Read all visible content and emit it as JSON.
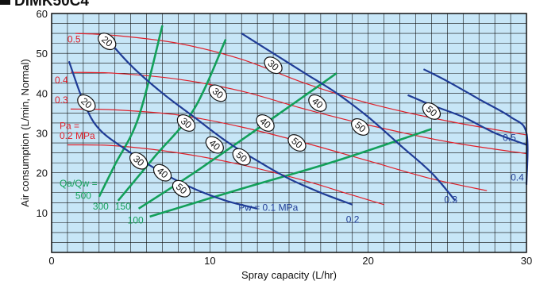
{
  "title": "DIMK50C4",
  "chart_data": {
    "type": "line",
    "xlabel": "Spray capacity (L/hr)",
    "ylabel": "Air consumption (L/min, Normal)",
    "xlim": [
      0,
      30
    ],
    "ylim": [
      0,
      60
    ],
    "x_ticks": [
      "0",
      "10",
      "20",
      "30"
    ],
    "y_ticks": [
      "10",
      "20",
      "30",
      "40",
      "50",
      "60"
    ],
    "grid": true,
    "background_color": "#c7e6f7",
    "colors": {
      "pa": "#e0202a",
      "pw": "#1f3c96",
      "qaqw": "#13a05a"
    },
    "pa_series": [
      {
        "label": "0.5",
        "points": [
          [
            1.5,
            55
          ],
          [
            4,
            54.5
          ],
          [
            8,
            52.5
          ],
          [
            12,
            48.5
          ],
          [
            16,
            42.5
          ],
          [
            20,
            37.5
          ],
          [
            25,
            33
          ],
          [
            30,
            29.5
          ]
        ]
      },
      {
        "label": "0.4",
        "points": [
          [
            1.2,
            45.2
          ],
          [
            4,
            45
          ],
          [
            8,
            43.5
          ],
          [
            12,
            40.5
          ],
          [
            16,
            36
          ],
          [
            20,
            32
          ],
          [
            25,
            27.8
          ],
          [
            30,
            24.8
          ]
        ]
      },
      {
        "label": "0.3",
        "points": [
          [
            1.2,
            36
          ],
          [
            4,
            35.8
          ],
          [
            8,
            34.5
          ],
          [
            12,
            31.5
          ],
          [
            16,
            27.5
          ],
          [
            20,
            23
          ],
          [
            24,
            18.5
          ],
          [
            27.5,
            15.5
          ]
        ]
      },
      {
        "label": "Pa =\n0.2 MPa",
        "points": [
          [
            1,
            27
          ],
          [
            4,
            26.8
          ],
          [
            8,
            25
          ],
          [
            12,
            22
          ],
          [
            16,
            18
          ],
          [
            18.5,
            15
          ],
          [
            21,
            12
          ]
        ]
      }
    ],
    "pw_series": [
      {
        "label": "Pw = 0.1 MPa",
        "points": [
          [
            1.1,
            48
          ],
          [
            2,
            38
          ],
          [
            3,
            31
          ],
          [
            5,
            25
          ],
          [
            7,
            20
          ],
          [
            9,
            16
          ],
          [
            11,
            13
          ],
          [
            13,
            11
          ]
        ]
      },
      {
        "label": "0.2",
        "points": [
          [
            3.2,
            55
          ],
          [
            5,
            47
          ],
          [
            7,
            40
          ],
          [
            9,
            34
          ],
          [
            11,
            28
          ],
          [
            13,
            23
          ],
          [
            15,
            18.5
          ],
          [
            17,
            15
          ],
          [
            19,
            12
          ]
        ]
      },
      {
        "label": "0.3",
        "points": [
          [
            12,
            55
          ],
          [
            14,
            50
          ],
          [
            16,
            45
          ],
          [
            18,
            40
          ],
          [
            20,
            34
          ],
          [
            22,
            27
          ],
          [
            24,
            20
          ],
          [
            25.5,
            13
          ]
        ]
      },
      {
        "label": "0.4",
        "points": [
          [
            23.5,
            46
          ],
          [
            25,
            43
          ],
          [
            27,
            38.5
          ],
          [
            29,
            34
          ],
          [
            30,
            30
          ],
          [
            30,
            17
          ]
        ]
      },
      {
        "label": "0.5",
        "points": [
          [
            22.5,
            39.5
          ],
          [
            24,
            37
          ],
          [
            26,
            34
          ],
          [
            28,
            30
          ],
          [
            30,
            27
          ]
        ]
      }
    ],
    "qaqw_series": [
      {
        "label": "Qa/Qw =\n500",
        "points": [
          [
            3,
            14
          ],
          [
            4,
            22
          ],
          [
            5.5,
            34
          ],
          [
            7,
            57
          ]
        ]
      },
      {
        "label": "300",
        "points": [
          [
            4.2,
            13
          ],
          [
            6.5,
            24
          ],
          [
            9,
            36
          ],
          [
            11,
            53.5
          ]
        ]
      },
      {
        "label": "150",
        "points": [
          [
            5.5,
            11
          ],
          [
            9,
            20
          ],
          [
            13,
            31
          ],
          [
            18,
            45
          ]
        ]
      },
      {
        "label": "100",
        "points": [
          [
            6.2,
            9
          ],
          [
            12,
            16
          ],
          [
            18,
            23
          ],
          [
            24,
            31
          ]
        ]
      }
    ],
    "ellipse_labels": [
      {
        "text": "20",
        "point": [
          3.5,
          53
        ]
      },
      {
        "text": "20",
        "point": [
          2.2,
          37.5
        ]
      },
      {
        "text": "30",
        "point": [
          14,
          47
        ]
      },
      {
        "text": "30",
        "point": [
          10.5,
          40
        ]
      },
      {
        "text": "30",
        "point": [
          8.5,
          32.5
        ]
      },
      {
        "text": "30",
        "point": [
          5.5,
          23
        ]
      },
      {
        "text": "40",
        "point": [
          16.8,
          37.5
        ]
      },
      {
        "text": "40",
        "point": [
          13.5,
          32.5
        ]
      },
      {
        "text": "40",
        "point": [
          10.3,
          27
        ]
      },
      {
        "text": "40",
        "point": [
          7,
          20
        ]
      },
      {
        "text": "50",
        "point": [
          24,
          35.5
        ]
      },
      {
        "text": "50",
        "point": [
          19.5,
          31.5
        ]
      },
      {
        "text": "50",
        "point": [
          15.5,
          27.5
        ]
      },
      {
        "text": "50",
        "point": [
          12,
          24
        ]
      },
      {
        "text": "50",
        "point": [
          8.2,
          16
        ]
      }
    ],
    "annotations": [
      {
        "text": "0.5",
        "point": [
          28.5,
          28
        ],
        "color": "pw",
        "anchor": "start"
      },
      {
        "text": "0.4",
        "point": [
          29,
          18
        ],
        "color": "pw",
        "anchor": "start"
      },
      {
        "text": "0.3",
        "point": [
          24.8,
          12.5
        ],
        "color": "pw",
        "anchor": "start"
      },
      {
        "text": "0.2",
        "point": [
          18.6,
          7.5
        ],
        "color": "pw",
        "anchor": "start"
      },
      {
        "text": "Pw = 0.1 MPa",
        "point": [
          11.8,
          10.5
        ],
        "color": "pw",
        "anchor": "start"
      },
      {
        "text": "0.5",
        "point": [
          1,
          52.7
        ],
        "color": "pa",
        "anchor": "start"
      },
      {
        "text": "0.4",
        "point": [
          0.2,
          42.5
        ],
        "color": "pa",
        "anchor": "start"
      },
      {
        "text": "0.3",
        "point": [
          0.2,
          37.5
        ],
        "color": "pa",
        "anchor": "start"
      },
      {
        "text": "Pa =",
        "point": [
          0.5,
          31
        ],
        "color": "pa",
        "anchor": "start"
      },
      {
        "text": "0.2 MPa",
        "point": [
          0.5,
          28.5
        ],
        "color": "pa",
        "anchor": "start"
      },
      {
        "text": "Qa/Qw =",
        "point": [
          0.5,
          16.5
        ],
        "color": "qaqw",
        "anchor": "start"
      },
      {
        "text": "500",
        "point": [
          1.5,
          13.5
        ],
        "color": "qaqw",
        "anchor": "start"
      },
      {
        "text": "300",
        "point": [
          2.6,
          10.8
        ],
        "color": "qaqw",
        "anchor": "start"
      },
      {
        "text": "150",
        "point": [
          4,
          10.8
        ],
        "color": "qaqw",
        "anchor": "start"
      },
      {
        "text": "100",
        "point": [
          4.8,
          7.3
        ],
        "color": "qaqw",
        "anchor": "start"
      }
    ]
  }
}
